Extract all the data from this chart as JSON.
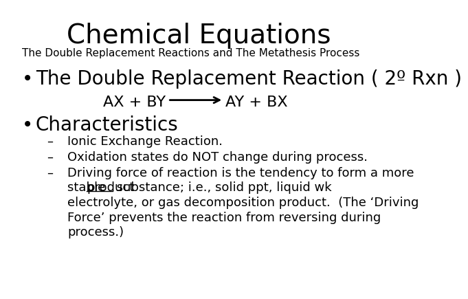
{
  "title": "Chemical Equations",
  "subtitle": "The Double Replacement Reactions and The Metathesis Process",
  "bullet1": "The Double Replacement Reaction ( 2º Rxn )",
  "bullet2": "Characteristics",
  "dash1": "Ionic Exchange Reaction.",
  "dash2": "Oxidation states do NOT change during process.",
  "dash3_line1": "Driving force of reaction is the tendency to form a more",
  "dash3_line2a": "stable ",
  "dash3_line2b": "product",
  "dash3_line2c": " substance; i.e., solid ppt, liquid wk",
  "dash3_line3": "electrolyte, or gas decomposition product.  (The ‘Driving",
  "dash3_line4": "Force’ prevents the reaction from reversing during",
  "dash3_line5": "process.)",
  "eq_left": "AX + BY",
  "eq_right": "AY + BX",
  "bg_color": "#ffffff",
  "text_color": "#000000",
  "title_fontsize": 28,
  "subtitle_fontsize": 11,
  "bullet_fontsize": 20,
  "body_fontsize": 13,
  "equation_fontsize": 16
}
